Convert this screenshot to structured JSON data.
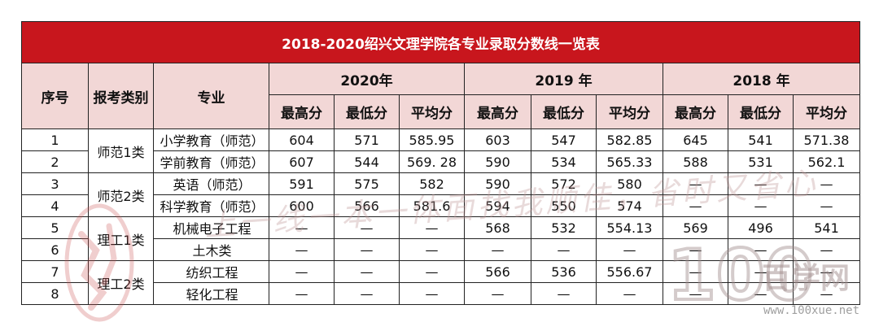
{
  "table": {
    "title": "2018-2020绍兴文理学院各专业录取分数线一览表",
    "headers": {
      "index": "序号",
      "category": "报考类别",
      "major": "专业",
      "years": [
        "2020年",
        "2019 年",
        "2018 年"
      ],
      "score_cols": [
        "最高分",
        "最低分",
        "平均分"
      ]
    },
    "rows": [
      {
        "index": "1",
        "major": "小学教育（师范）",
        "y2020": [
          "604",
          "571",
          "585.95"
        ],
        "y2019": [
          "603",
          "547",
          "582.85"
        ],
        "y2018": [
          "645",
          "541",
          "571.38"
        ]
      },
      {
        "index": "2",
        "major": "学前教育（师范）",
        "y2020": [
          "607",
          "544",
          "569. 28"
        ],
        "y2019": [
          "590",
          "534",
          "565.33"
        ],
        "y2018": [
          "588",
          "531",
          "562.1"
        ]
      },
      {
        "index": "3",
        "major": "英语（师范）",
        "y2020": [
          "591",
          "575",
          "582"
        ],
        "y2019": [
          "590",
          "572",
          "580"
        ],
        "y2018": [
          "—",
          "—",
          "—"
        ]
      },
      {
        "index": "4",
        "major": "科学教育（师范）",
        "y2020": [
          "600",
          "566",
          "581.6"
        ],
        "y2019": [
          "594",
          "550",
          "574"
        ],
        "y2018": [
          "—",
          "—",
          "—"
        ]
      },
      {
        "index": "5",
        "major": "机械电子工程",
        "y2020": [
          "—",
          "—",
          "—"
        ],
        "y2019": [
          "568",
          "532",
          "554.13"
        ],
        "y2018": [
          "569",
          "496",
          "541"
        ]
      },
      {
        "index": "6",
        "major": "土木类",
        "y2020": [
          "—",
          "—",
          "—"
        ],
        "y2019": [
          "—",
          "—",
          "—"
        ],
        "y2018": [
          "—",
          "—",
          "—"
        ]
      },
      {
        "index": "7",
        "major": "纺织工程",
        "y2020": [
          "—",
          "—",
          "—"
        ],
        "y2019": [
          "566",
          "536",
          "556.67"
        ],
        "y2018": [
          "—",
          "—",
          "—"
        ]
      },
      {
        "index": "8",
        "major": "轻化工程",
        "y2020": [
          "—",
          "—",
          "—"
        ],
        "y2019": [
          "—",
          "—",
          "—"
        ],
        "y2018": [
          "—",
          "—",
          "—"
        ]
      }
    ],
    "categories": [
      "师范1类",
      "师范2类",
      "理工1类",
      "理工2类"
    ]
  },
  "watermark": {
    "slogan": "上一线一本一体面找我顺佳，省时又省心",
    "brand": "百学网",
    "url": "www.100xue.net",
    "logo_number": "100"
  }
}
